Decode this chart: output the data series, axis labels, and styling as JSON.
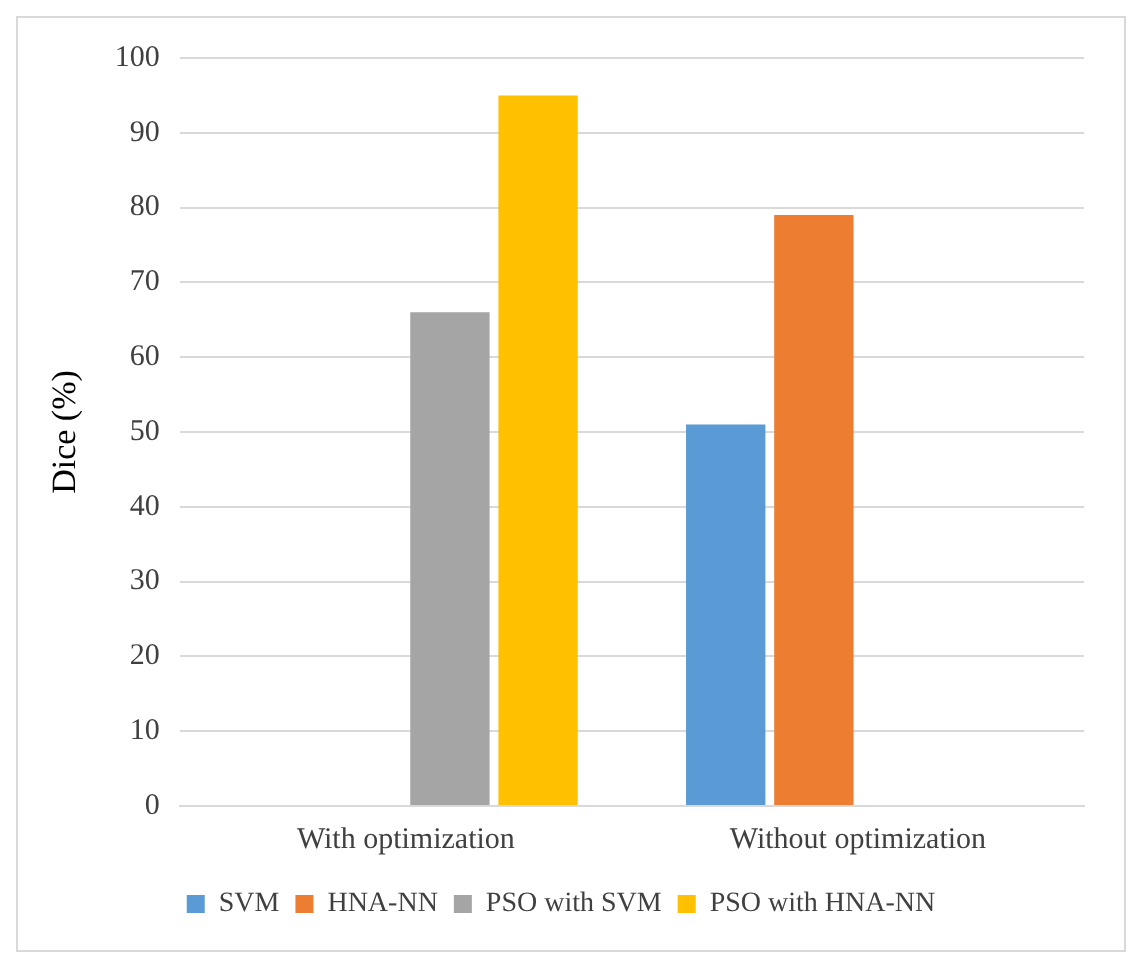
{
  "chart_data": {
    "type": "bar",
    "ylabel": "Dice (%)",
    "categories": [
      "With optimization",
      "Without optimization"
    ],
    "series": [
      {
        "name": "SVM",
        "color": "#5b9bd5",
        "values": [
          null,
          51
        ]
      },
      {
        "name": "HNA-NN",
        "color": "#ed7d31",
        "values": [
          null,
          79
        ]
      },
      {
        "name": "PSO with SVM",
        "color": "#a5a5a5",
        "values": [
          66,
          null
        ]
      },
      {
        "name": "PSO with HNA-NN",
        "color": "#ffc000",
        "values": [
          95,
          null
        ]
      }
    ],
    "ylim": [
      0,
      100
    ],
    "yticks": [
      0,
      10,
      20,
      30,
      40,
      50,
      60,
      70,
      80,
      90,
      100
    ],
    "grid": "y",
    "legend": "bottom"
  }
}
